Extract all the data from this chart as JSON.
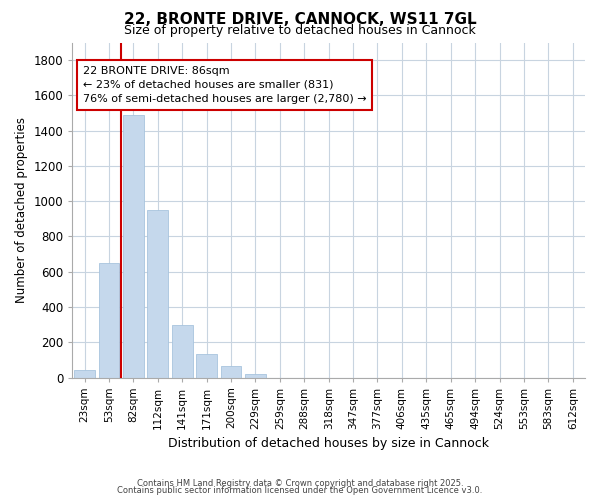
{
  "title_line1": "22, BRONTE DRIVE, CANNOCK, WS11 7GL",
  "title_line2": "Size of property relative to detached houses in Cannock",
  "xlabel": "Distribution of detached houses by size in Cannock",
  "ylabel": "Number of detached properties",
  "categories": [
    "23sqm",
    "53sqm",
    "82sqm",
    "112sqm",
    "141sqm",
    "171sqm",
    "200sqm",
    "229sqm",
    "259sqm",
    "288sqm",
    "318sqm",
    "347sqm",
    "377sqm",
    "406sqm",
    "435sqm",
    "465sqm",
    "494sqm",
    "524sqm",
    "553sqm",
    "583sqm",
    "612sqm"
  ],
  "values": [
    45,
    650,
    1490,
    950,
    295,
    135,
    65,
    20,
    0,
    0,
    0,
    0,
    0,
    0,
    0,
    0,
    0,
    0,
    0,
    0,
    0
  ],
  "bar_color": "#c5d8ec",
  "bar_edge_color": "#a8c4de",
  "grid_color": "#c8d4e0",
  "vline_x_index": 2,
  "vline_color": "#cc0000",
  "annotation_text": "22 BRONTE DRIVE: 86sqm\n← 23% of detached houses are smaller (831)\n76% of semi-detached houses are larger (2,780) →",
  "annotation_box_color": "#cc0000",
  "ylim": [
    0,
    1900
  ],
  "yticks": [
    0,
    200,
    400,
    600,
    800,
    1000,
    1200,
    1400,
    1600,
    1800
  ],
  "footer_line1": "Contains HM Land Registry data © Crown copyright and database right 2025.",
  "footer_line2": "Contains public sector information licensed under the Open Government Licence v3.0.",
  "bg_color": "#ffffff",
  "plot_bg_color": "#ffffff"
}
